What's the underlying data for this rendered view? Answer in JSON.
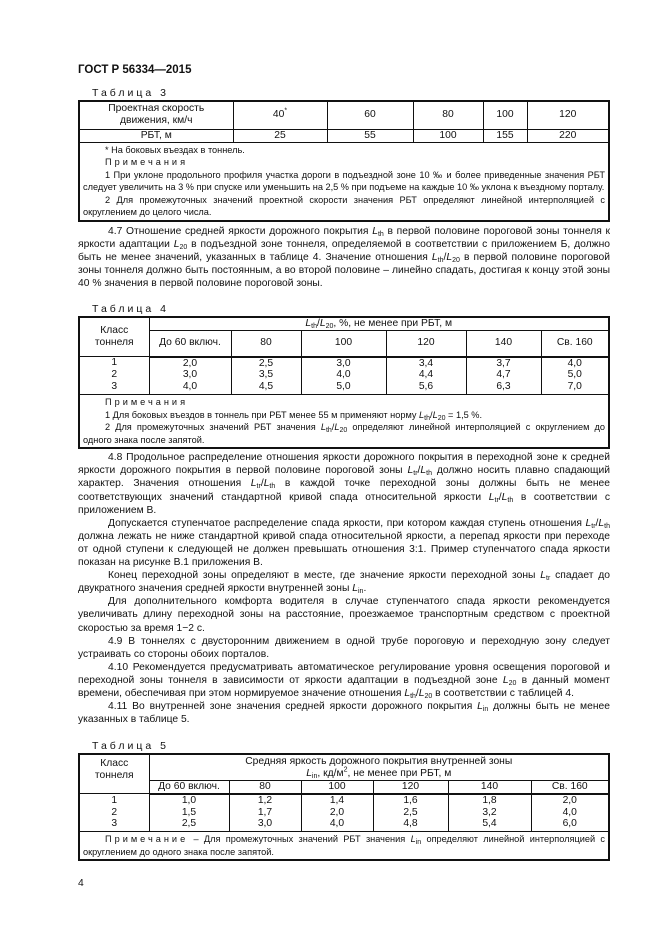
{
  "header": "ГОСТ Р 56334—2015",
  "table3": {
    "caption": "Таблица 3",
    "row1_label": "Проектная скорость движения, км/ч",
    "speeds": [
      "40",
      "60",
      "80",
      "100",
      "120"
    ],
    "speed_footnote_mark": "*",
    "row2_label": "РБТ, м",
    "rbt": [
      "25",
      "55",
      "100",
      "155",
      "220"
    ],
    "footnote": "* На боковых въездах в тоннель.",
    "notes_title": "Примечания",
    "notes": [
      "1 При уклоне продольного профиля участка дороги в подъездной зоне 10 ‰ и более приведенные значения РБТ следует увеличить на 3 % при спуске или уменьшить на 2,5 % при подъеме на каждые 10 ‰ уклона к въездному порталу.",
      "2 Для промежуточных значений проектной скорости значения РБТ определяют линейной интерполяцией с округлением до целого числа."
    ]
  },
  "para_4_7": [
    [
      "4.7 Отношение средней яркости дорожного покрытия ",
      {
        "i": "L",
        "s": "th"
      },
      " в первой половине пороговой зоны тоннеля к яркости адаптации ",
      {
        "i": "L",
        "s": "20"
      },
      " в подъездной зоне тоннеля, определяемой в соответствии с приложением Б, должно быть не менее значений, указанных в таблице 4. Значение отношения ",
      {
        "i": "L",
        "s": "th"
      },
      "/",
      {
        "i": "L",
        "s": "20"
      },
      " в первой половине пороговой зоны тоннеля должно быть постоянным, а во второй половине – линейно спадать, достигая к концу этой зоны 40 % значения в первой половине пороговой зоны."
    ]
  ],
  "table4": {
    "caption": "Таблица 4",
    "class_header": "Класс тоннеля",
    "group_header": [
      {
        "i": "L",
        "s": "th"
      },
      "/",
      {
        "i": "L",
        "s": "20"
      },
      ", %, не менее при РБТ, м"
    ],
    "columns": [
      "До 60 включ.",
      "80",
      "100",
      "120",
      "140",
      "Св. 160"
    ],
    "rows": [
      {
        "class": "1",
        "values": [
          "2,0",
          "2,5",
          "3,0",
          "3,4",
          "3,7",
          "4,0"
        ]
      },
      {
        "class": "2",
        "values": [
          "3,0",
          "3,5",
          "4,0",
          "4,4",
          "4,7",
          "5,0"
        ]
      },
      {
        "class": "3",
        "values": [
          "4,0",
          "4,5",
          "5,0",
          "5,6",
          "6,3",
          "7,0"
        ]
      }
    ],
    "notes_title": "Примечания",
    "notes": [
      [
        "1 Для боковых въездов в тоннель при РБТ менее 55 м применяют норму ",
        {
          "i": "L",
          "s": "th"
        },
        "/",
        {
          "i": "L",
          "s": "20"
        },
        " = 1,5 %."
      ],
      [
        "2 Для промежуточных значений РБТ значения ",
        {
          "i": "L",
          "s": "th"
        },
        "/",
        {
          "i": "L",
          "s": "20"
        },
        " определяют линейной интерполяцией с округлением до одного знака после запятой."
      ]
    ]
  },
  "paras_main": [
    [
      "4.8 Продольное распределение отношения яркости дорожного покрытия в переходной зоне к средней яркости дорожного покрытия в первой половине пороговой зоны ",
      {
        "i": "L",
        "s": "tr"
      },
      "/",
      {
        "i": "L",
        "s": "th"
      },
      " должно носить плавно спадающий характер. Значения отношения ",
      {
        "i": "L",
        "s": "tr"
      },
      "/",
      {
        "i": "L",
        "s": "th"
      },
      " в каждой точке переходной зоны должны быть не менее соответствующих значений стандартной кривой спада относительной яркости ",
      {
        "i": "L",
        "s": "tr"
      },
      "/",
      {
        "i": "L",
        "s": "th"
      },
      " в соответствии с приложением В."
    ],
    [
      "Допускается ступенчатое распределение спада яркости, при котором каждая ступень отношения ",
      {
        "i": "L",
        "s": "tr"
      },
      "/",
      {
        "i": "L",
        "s": "th"
      },
      " должна лежать не ниже стандартной кривой спада относительной яркости, а перепад яркости при переходе от одной ступени к следующей не должен превышать отношения 3:1. Пример ступенчатого спада яркости показан на рисунке В.1 приложения В."
    ],
    [
      "Конец переходной зоны определяют в месте, где значение яркости переходной зоны ",
      {
        "i": "L",
        "s": "tr"
      },
      " спадает до двукратного значения средней яркости внутренней зоны ",
      {
        "i": "L",
        "s": "in"
      },
      "."
    ],
    [
      "Для дополнительного комфорта водителя в случае ступенчатого спада яркости рекомендуется увеличивать длину переходной зоны на расстояние, проезжаемое транспортным средством с проектной скоростью за время 1−2 с."
    ],
    [
      "4.9 В тоннелях с двусторонним движением в одной трубе пороговую и переходную зону следует устраивать со стороны обоих порталов."
    ],
    [
      "4.10 Рекомендуется предусматривать автоматическое регулирование уровня освещения пороговой и переходной зоны тоннеля в зависимости от яркости адаптации в подъездной зоне ",
      {
        "i": "L",
        "s": "20"
      },
      " в данный момент времени, обеспечивая при этом нормируемое значение отношения ",
      {
        "i": "L",
        "s": "th"
      },
      "/",
      {
        "i": "L",
        "s": "20"
      },
      " в соответствии с таблицей 4."
    ],
    [
      "4.11 Во внутренней зоне значения средней яркости дорожного покрытия ",
      {
        "i": "L",
        "s": "in"
      },
      " должны быть не менее указанных в таблице 5."
    ]
  ],
  "table5": {
    "caption": "Таблица 5",
    "class_header": "Класс тоннеля",
    "group_header_line1": "Средняя яркость дорожного покрытия внутренней зоны",
    "group_header_line2": [
      {
        "i": "L",
        "s": "in"
      },
      ", кд/м",
      {
        "sup": "2"
      },
      ", не менее при РБТ, м"
    ],
    "columns": [
      "До 60 включ.",
      "80",
      "100",
      "120",
      "140",
      "Св. 160"
    ],
    "rows": [
      {
        "class": "1",
        "values": [
          "1,0",
          "1,2",
          "1,4",
          "1,6",
          "1,8",
          "2,0"
        ]
      },
      {
        "class": "2",
        "values": [
          "1,5",
          "1,7",
          "2,0",
          "2,5",
          "3,2",
          "4,0"
        ]
      },
      {
        "class": "3",
        "values": [
          "2,5",
          "3,0",
          "4,0",
          "4,8",
          "5,4",
          "6,0"
        ]
      }
    ],
    "note_title": "Примечание",
    "note": [
      " – Для промежуточных значений РБТ значения ",
      {
        "i": "L",
        "s": "in"
      },
      " определяют линейной интерполяцией с округлением до одного знака после запятой."
    ]
  },
  "page_number": "4"
}
